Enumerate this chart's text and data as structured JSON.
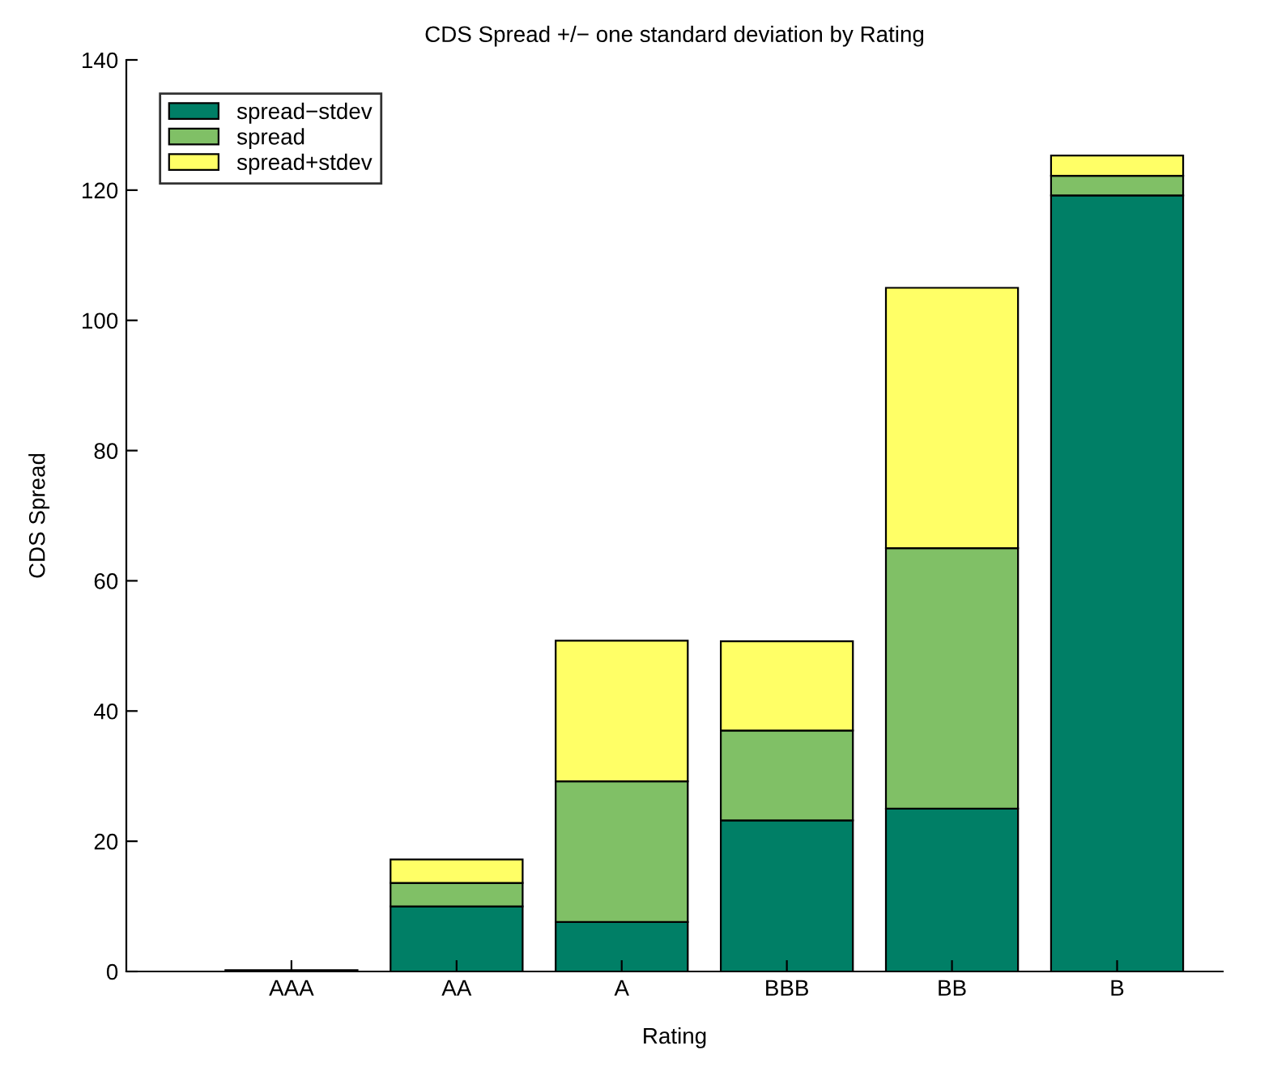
{
  "chart_data": {
    "type": "bar",
    "title": "CDS Spread +/− one standard deviation by Rating",
    "xlabel": "Rating",
    "ylabel": "CDS Spread",
    "categories": [
      "AAA",
      "AA",
      "A",
      "BBB",
      "BB",
      "B"
    ],
    "stacked": true,
    "series": [
      {
        "name": "spread−stdev",
        "color": "#007f66",
        "values": [
          0.2,
          10,
          7.6,
          23.2,
          25,
          119.2
        ]
      },
      {
        "name": "spread",
        "color": "#80c066",
        "values": [
          null,
          3.6,
          21.6,
          13.8,
          40,
          3.0
        ]
      },
      {
        "name": "spread+stdev",
        "color": "#ffff66",
        "values": [
          null,
          3.6,
          21.6,
          13.7,
          40,
          3.1
        ]
      }
    ],
    "ylim": [
      0,
      140
    ],
    "yticks": [
      0,
      20,
      40,
      60,
      80,
      100,
      120,
      140
    ],
    "legend": "top left",
    "grid": false
  }
}
